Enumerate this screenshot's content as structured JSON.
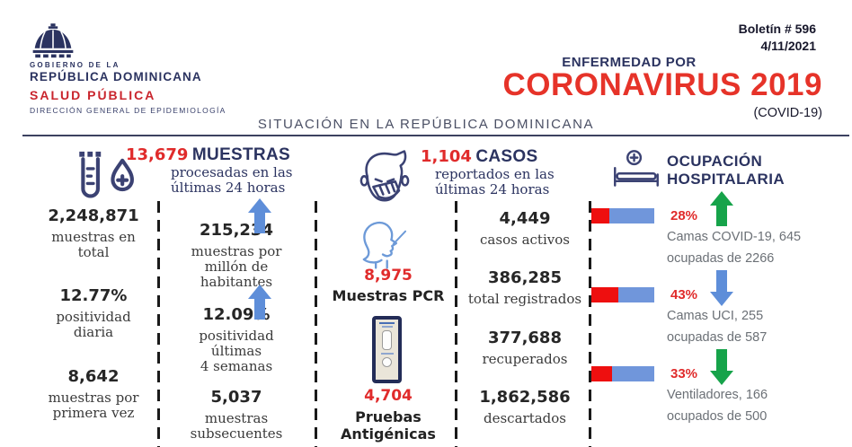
{
  "colors": {
    "navy": "#2b3360",
    "stat_red": "#e02b2b",
    "brand_red": "#c9252d",
    "title_red": "#e63329",
    "gray_text": "#6b7076",
    "arrow_blue": "#5e8ed9",
    "arrow_green": "#16a34a",
    "bar_blue": "#7096db",
    "bar_red": "#ee0f0f"
  },
  "header": {
    "logo": {
      "gov_line1": "GOBIERNO DE LA",
      "gov_line2": "REPÚBLICA DOMINICANA",
      "ministry": "SALUD PÚBLICA",
      "department": "DIRECCIÓN GENERAL DE EPIDEMIOLOGÍA"
    },
    "bulletin_number": "Boletín # 596",
    "bulletin_date": "4/11/2021",
    "disease_pre": "ENFERMEDAD POR",
    "disease_title": "CORONAVIRUS 2019",
    "disease_sub": "(COVID-19)",
    "section_title": "SITUACIÓN EN LA REPÚBLICA DOMINICANA"
  },
  "muestras": {
    "headline_value": "13,679",
    "headline_label": "MUESTRAS",
    "headline_sub": "procesadas en las\núltimas 24 horas",
    "totals": [
      {
        "value": "2,248,871",
        "label": "muestras en\ntotal"
      },
      {
        "value": "12.77%",
        "label": "positividad\ndiaria"
      },
      {
        "value": "8,642",
        "label": "muestras por\nprimera vez"
      }
    ],
    "detail": [
      {
        "value": "215,234",
        "label": "muestras por\nmillón de\nhabitantes",
        "arrow": {
          "dir": "up",
          "color": "blue"
        }
      },
      {
        "value": "12.09%",
        "label": "positividad\núltimas\n4 semanas",
        "arrow": {
          "dir": "up",
          "color": "blue"
        }
      },
      {
        "value": "5,037",
        "label": "muestras\nsubsecuentes"
      }
    ]
  },
  "casos": {
    "headline_value": "1,104",
    "headline_label": "CASOS",
    "headline_sub": "reportados en las\núltimas 24 horas",
    "pcr": {
      "value": "8,975",
      "label": "Muestras PCR"
    },
    "antigen": {
      "value": "4,704",
      "label": "Pruebas Antigénicas"
    },
    "stats": [
      {
        "value": "4,449",
        "label": "casos activos"
      },
      {
        "value": "386,285",
        "label": "total registrados"
      },
      {
        "value": "377,688",
        "label": "recuperados"
      },
      {
        "value": "1,862,586",
        "label": "descartados"
      }
    ]
  },
  "hospital": {
    "title": "OCUPACIÓN\nHOSPITALARIA",
    "rows": [
      {
        "pct_label": "28%",
        "pct": 28,
        "arrow": {
          "dir": "up",
          "color": "green"
        },
        "line1": "Camas COVID-19,  645",
        "line2": "ocupadas de 2266"
      },
      {
        "pct_label": "43%",
        "pct": 43,
        "arrow": {
          "dir": "down",
          "color": "blue"
        },
        "line1": "Camas UCI,  255",
        "line2": "ocupadas de 587"
      },
      {
        "pct_label": "33%",
        "pct": 33,
        "arrow": {
          "dir": "down",
          "color": "green"
        },
        "line1": "Ventiladores, 166",
        "line2": "ocupados de 500"
      }
    ]
  }
}
